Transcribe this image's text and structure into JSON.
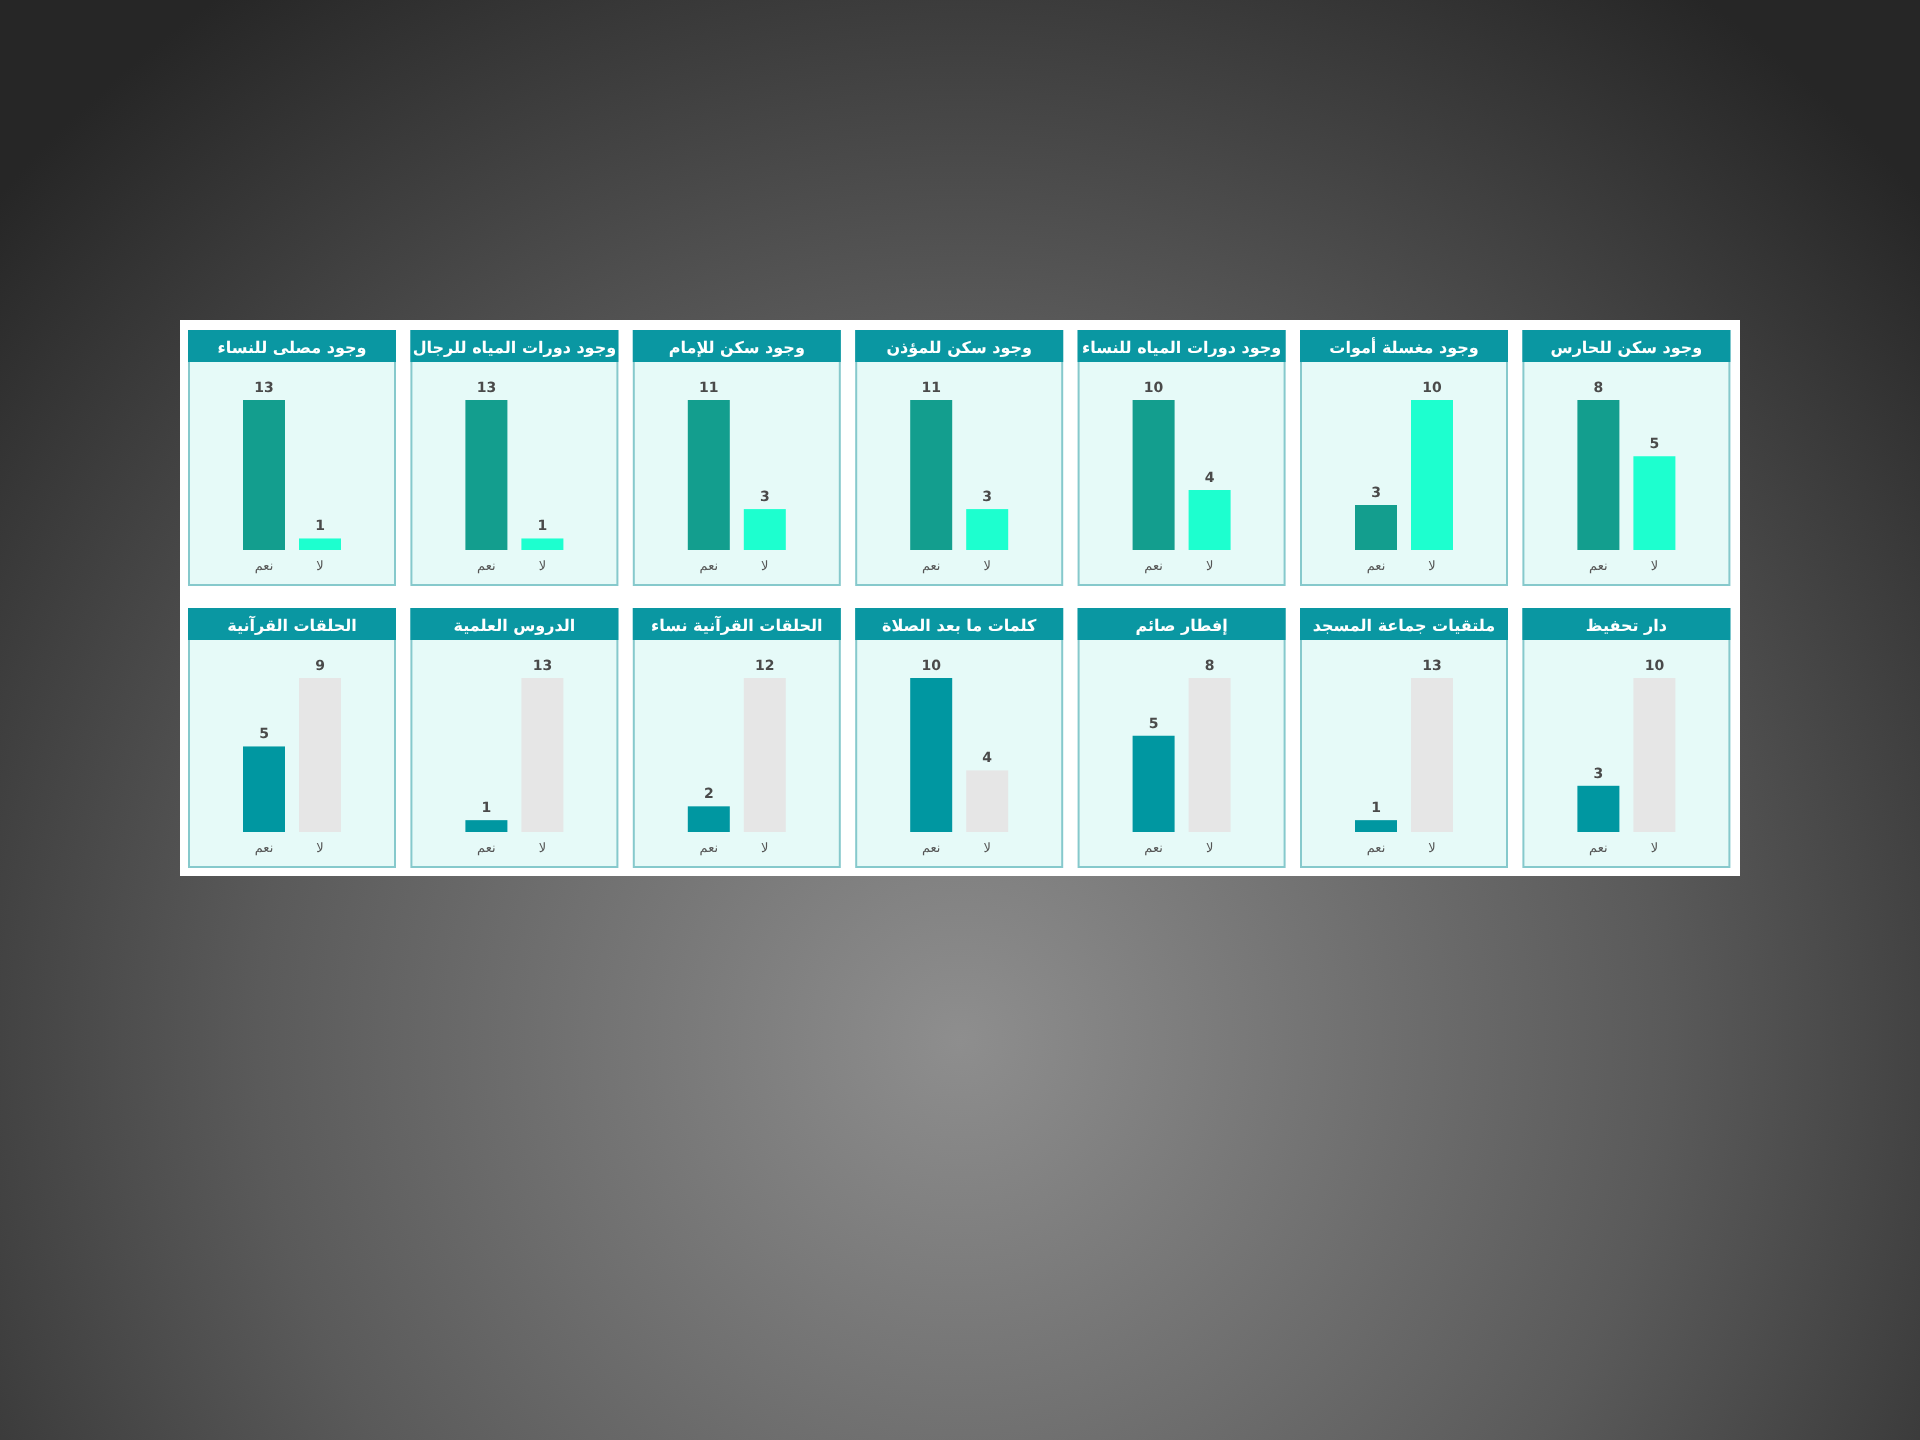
{
  "chart_data": [
    {
      "type": "bar",
      "title": "وجود سكن للحارس",
      "categories": [
        "نعم",
        "لا"
      ],
      "values": [
        8,
        5
      ],
      "colors": [
        "#139e8e",
        "#1dffcf"
      ],
      "data_labels": true
    },
    {
      "type": "bar",
      "title": "وجود مغسلة أموات",
      "categories": [
        "نعم",
        "لا"
      ],
      "values": [
        3,
        10
      ],
      "colors": [
        "#139e8e",
        "#1dffcf"
      ],
      "data_labels": true
    },
    {
      "type": "bar",
      "title": "وجود دورات المياه للنساء",
      "categories": [
        "نعم",
        "لا"
      ],
      "values": [
        10,
        4
      ],
      "colors": [
        "#139e8e",
        "#1dffcf"
      ],
      "data_labels": true
    },
    {
      "type": "bar",
      "title": "وجود سكن للمؤذن",
      "categories": [
        "نعم",
        "لا"
      ],
      "values": [
        11,
        3
      ],
      "colors": [
        "#139e8e",
        "#1dffcf"
      ],
      "data_labels": true
    },
    {
      "type": "bar",
      "title": "وجود سكن للإمام",
      "categories": [
        "نعم",
        "لا"
      ],
      "values": [
        11,
        3
      ],
      "colors": [
        "#139e8e",
        "#1dffcf"
      ],
      "data_labels": true
    },
    {
      "type": "bar",
      "title": "وجود دورات المياه للرجال",
      "categories": [
        "نعم",
        "لا"
      ],
      "values": [
        13,
        1
      ],
      "colors": [
        "#139e8e",
        "#1dffcf"
      ],
      "data_labels": true
    },
    {
      "type": "bar",
      "title": "وجود مصلى للنساء",
      "categories": [
        "نعم",
        "لا"
      ],
      "values": [
        13,
        1
      ],
      "colors": [
        "#139e8e",
        "#1dffcf"
      ],
      "data_labels": true
    },
    {
      "type": "bar",
      "title": "دار تحفيظ",
      "categories": [
        "نعم",
        "لا"
      ],
      "values": [
        3,
        10
      ],
      "colors": [
        "#0097a1",
        "#e6e6e6"
      ],
      "data_labels": true
    },
    {
      "type": "bar",
      "title": "ملتقيات جماعة المسجد",
      "categories": [
        "نعم",
        "لا"
      ],
      "values": [
        1,
        13
      ],
      "colors": [
        "#0097a1",
        "#e6e6e6"
      ],
      "data_labels": true
    },
    {
      "type": "bar",
      "title": "إفطار صائم",
      "categories": [
        "نعم",
        "لا"
      ],
      "values": [
        5,
        8
      ],
      "colors": [
        "#0097a1",
        "#e6e6e6"
      ],
      "data_labels": true
    },
    {
      "type": "bar",
      "title": "كلمات ما بعد الصلاة",
      "categories": [
        "نعم",
        "لا"
      ],
      "values": [
        10,
        4
      ],
      "colors": [
        "#0097a1",
        "#e6e6e6"
      ],
      "data_labels": true
    },
    {
      "type": "bar",
      "title": "الحلقات القرآنية نساء",
      "categories": [
        "نعم",
        "لا"
      ],
      "values": [
        2,
        12
      ],
      "colors": [
        "#0097a1",
        "#e6e6e6"
      ],
      "data_labels": true
    },
    {
      "type": "bar",
      "title": "الدروس العلمية",
      "categories": [
        "نعم",
        "لا"
      ],
      "values": [
        1,
        13
      ],
      "colors": [
        "#0097a1",
        "#e6e6e6"
      ],
      "data_labels": true
    },
    {
      "type": "bar",
      "title": "الحلقات القرآنية",
      "categories": [
        "نعم",
        "لا"
      ],
      "values": [
        5,
        9
      ],
      "colors": [
        "#0097a1",
        "#e6e6e6"
      ],
      "data_labels": true
    }
  ]
}
